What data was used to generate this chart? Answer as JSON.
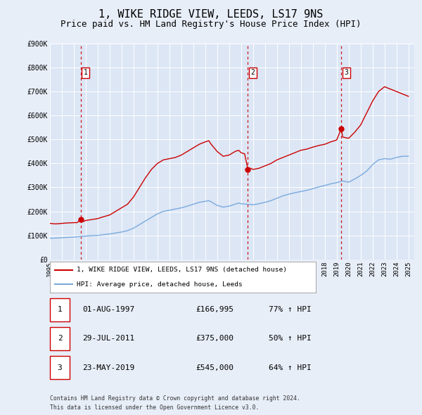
{
  "title": "1, WIKE RIDGE VIEW, LEEDS, LS17 9NS",
  "subtitle": "Price paid vs. HM Land Registry's House Price Index (HPI)",
  "title_fontsize": 11,
  "subtitle_fontsize": 9,
  "bg_color": "#e8eef8",
  "plot_bg_color": "#dce6f5",
  "grid_color": "#ffffff",
  "red_line_color": "#cc0000",
  "blue_line_color": "#7aaadd",
  "ylim": [
    0,
    900000
  ],
  "yticks": [
    0,
    100000,
    200000,
    300000,
    400000,
    500000,
    600000,
    700000,
    800000,
    900000
  ],
  "ytick_labels": [
    "£0",
    "£100K",
    "£200K",
    "£300K",
    "£400K",
    "£500K",
    "£600K",
    "£700K",
    "£800K",
    "£900K"
  ],
  "xlim_start": 1995.0,
  "xlim_end": 2025.5,
  "xticks": [
    1995,
    1996,
    1997,
    1998,
    1999,
    2000,
    2001,
    2002,
    2003,
    2004,
    2005,
    2006,
    2007,
    2008,
    2009,
    2010,
    2011,
    2012,
    2013,
    2014,
    2015,
    2016,
    2017,
    2018,
    2019,
    2020,
    2021,
    2022,
    2023,
    2024,
    2025
  ],
  "sale_dates": [
    1997.58,
    2011.57,
    2019.38
  ],
  "sale_prices": [
    166995,
    375000,
    545000
  ],
  "sale_labels": [
    "1",
    "2",
    "3"
  ],
  "legend_line1": "1, WIKE RIDGE VIEW, LEEDS, LS17 9NS (detached house)",
  "legend_line2": "HPI: Average price, detached house, Leeds",
  "table_rows": [
    {
      "num": "1",
      "date": "01-AUG-1997",
      "price": "£166,995",
      "pct": "77% ↑ HPI"
    },
    {
      "num": "2",
      "date": "29-JUL-2011",
      "price": "£375,000",
      "pct": "50% ↑ HPI"
    },
    {
      "num": "3",
      "date": "23-MAY-2019",
      "price": "£545,000",
      "pct": "64% ↑ HPI"
    }
  ],
  "footnote1": "Contains HM Land Registry data © Crown copyright and database right 2024.",
  "footnote2": "This data is licensed under the Open Government Licence v3.0.",
  "red_hpi_data": [
    [
      1995.0,
      150000
    ],
    [
      1995.5,
      148000
    ],
    [
      1996.0,
      150000
    ],
    [
      1996.5,
      152000
    ],
    [
      1997.0,
      153000
    ],
    [
      1997.3,
      153500
    ],
    [
      1997.58,
      166995
    ],
    [
      1997.8,
      158000
    ],
    [
      1998.0,
      162000
    ],
    [
      1998.5,
      166000
    ],
    [
      1999.0,
      170000
    ],
    [
      1999.5,
      178000
    ],
    [
      2000.0,
      185000
    ],
    [
      2000.5,
      200000
    ],
    [
      2001.0,
      215000
    ],
    [
      2001.5,
      230000
    ],
    [
      2002.0,
      260000
    ],
    [
      2002.5,
      300000
    ],
    [
      2003.0,
      340000
    ],
    [
      2003.5,
      375000
    ],
    [
      2004.0,
      400000
    ],
    [
      2004.5,
      415000
    ],
    [
      2005.0,
      420000
    ],
    [
      2005.5,
      425000
    ],
    [
      2006.0,
      435000
    ],
    [
      2006.5,
      450000
    ],
    [
      2007.0,
      465000
    ],
    [
      2007.5,
      480000
    ],
    [
      2008.0,
      490000
    ],
    [
      2008.3,
      495000
    ],
    [
      2008.5,
      480000
    ],
    [
      2009.0,
      450000
    ],
    [
      2009.5,
      430000
    ],
    [
      2010.0,
      435000
    ],
    [
      2010.5,
      450000
    ],
    [
      2010.8,
      455000
    ],
    [
      2011.0,
      445000
    ],
    [
      2011.3,
      440000
    ],
    [
      2011.57,
      375000
    ],
    [
      2011.8,
      380000
    ],
    [
      2012.0,
      375000
    ],
    [
      2012.5,
      380000
    ],
    [
      2013.0,
      390000
    ],
    [
      2013.5,
      400000
    ],
    [
      2014.0,
      415000
    ],
    [
      2014.5,
      425000
    ],
    [
      2015.0,
      435000
    ],
    [
      2015.5,
      445000
    ],
    [
      2016.0,
      455000
    ],
    [
      2016.5,
      460000
    ],
    [
      2017.0,
      468000
    ],
    [
      2017.5,
      475000
    ],
    [
      2018.0,
      480000
    ],
    [
      2018.5,
      490000
    ],
    [
      2019.0,
      498000
    ],
    [
      2019.38,
      545000
    ],
    [
      2019.5,
      510000
    ],
    [
      2020.0,
      505000
    ],
    [
      2020.5,
      530000
    ],
    [
      2021.0,
      560000
    ],
    [
      2021.5,
      610000
    ],
    [
      2022.0,
      660000
    ],
    [
      2022.5,
      700000
    ],
    [
      2023.0,
      720000
    ],
    [
      2023.5,
      710000
    ],
    [
      2024.0,
      700000
    ],
    [
      2024.5,
      690000
    ],
    [
      2025.0,
      680000
    ]
  ],
  "blue_hpi_data": [
    [
      1995.0,
      88000
    ],
    [
      1995.5,
      89000
    ],
    [
      1996.0,
      90000
    ],
    [
      1996.5,
      92000
    ],
    [
      1997.0,
      93000
    ],
    [
      1997.5,
      95000
    ],
    [
      1998.0,
      97000
    ],
    [
      1998.5,
      99000
    ],
    [
      1999.0,
      100000
    ],
    [
      1999.5,
      103000
    ],
    [
      2000.0,
      106000
    ],
    [
      2000.5,
      110000
    ],
    [
      2001.0,
      114000
    ],
    [
      2001.5,
      120000
    ],
    [
      2002.0,
      130000
    ],
    [
      2002.5,
      145000
    ],
    [
      2003.0,
      160000
    ],
    [
      2003.5,
      175000
    ],
    [
      2004.0,
      190000
    ],
    [
      2004.5,
      200000
    ],
    [
      2005.0,
      205000
    ],
    [
      2005.5,
      210000
    ],
    [
      2006.0,
      215000
    ],
    [
      2006.5,
      222000
    ],
    [
      2007.0,
      230000
    ],
    [
      2007.5,
      238000
    ],
    [
      2008.0,
      242000
    ],
    [
      2008.3,
      245000
    ],
    [
      2008.5,
      240000
    ],
    [
      2009.0,
      225000
    ],
    [
      2009.5,
      218000
    ],
    [
      2010.0,
      222000
    ],
    [
      2010.5,
      230000
    ],
    [
      2010.8,
      235000
    ],
    [
      2011.0,
      232000
    ],
    [
      2011.5,
      230000
    ],
    [
      2012.0,
      228000
    ],
    [
      2012.5,
      232000
    ],
    [
      2013.0,
      238000
    ],
    [
      2013.5,
      245000
    ],
    [
      2014.0,
      255000
    ],
    [
      2014.5,
      265000
    ],
    [
      2015.0,
      272000
    ],
    [
      2015.5,
      278000
    ],
    [
      2016.0,
      283000
    ],
    [
      2016.5,
      288000
    ],
    [
      2017.0,
      295000
    ],
    [
      2017.5,
      302000
    ],
    [
      2018.0,
      308000
    ],
    [
      2018.5,
      315000
    ],
    [
      2019.0,
      320000
    ],
    [
      2019.5,
      327000
    ],
    [
      2020.0,
      322000
    ],
    [
      2020.5,
      335000
    ],
    [
      2021.0,
      350000
    ],
    [
      2021.5,
      368000
    ],
    [
      2022.0,
      395000
    ],
    [
      2022.5,
      415000
    ],
    [
      2023.0,
      420000
    ],
    [
      2023.5,
      418000
    ],
    [
      2024.0,
      425000
    ],
    [
      2024.5,
      430000
    ],
    [
      2025.0,
      430000
    ]
  ]
}
